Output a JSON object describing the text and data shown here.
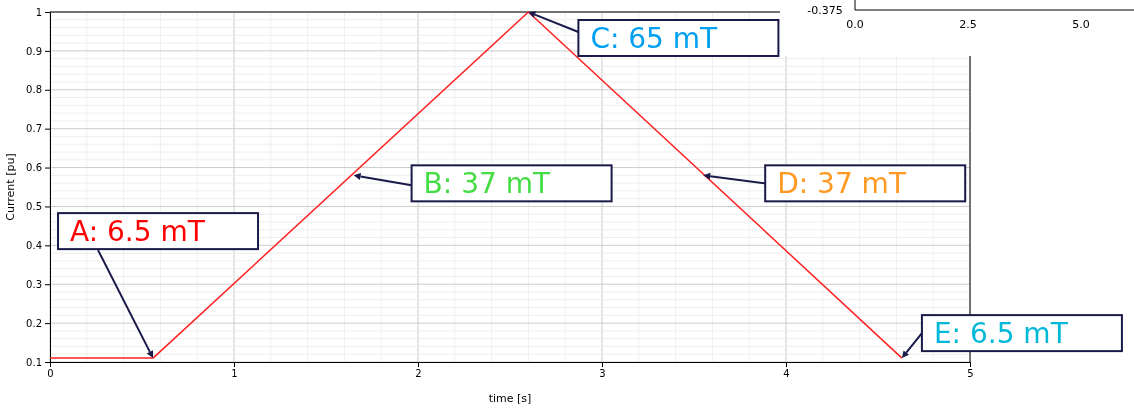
{
  "chart_data": [
    {
      "type": "line",
      "xlabel": "time [s]",
      "ylabel": "Current [pu]",
      "x": [
        0,
        0.56,
        2.6,
        4.63
      ],
      "series": [
        {
          "color": "#ff2020",
          "values": [
            0.11,
            0.11,
            1.0,
            0.11
          ]
        }
      ],
      "xlim": [
        0,
        5
      ],
      "xticks": [
        0,
        1,
        2,
        3,
        4,
        5
      ],
      "ylim": [
        0.1,
        1.0
      ],
      "yticks": [
        0.1,
        0.2,
        0.3,
        0.4,
        0.5,
        0.6,
        0.7,
        0.8,
        0.9,
        1.0
      ],
      "grid": true,
      "marker": "none",
      "line_style": "solid",
      "annotations": [
        {
          "text": "A: 6.5 mT",
          "x": 0.56,
          "y": 0.11
        },
        {
          "text": "B: 37 mT",
          "x": 1.65,
          "y": 0.58
        },
        {
          "text": "C: 65 mT",
          "x": 2.6,
          "y": 1.0
        },
        {
          "text": "D: 37 mT",
          "x": 3.55,
          "y": 0.58
        },
        {
          "text": "E: 6.5 mT",
          "x": 4.63,
          "y": 0.11
        }
      ]
    },
    {
      "type": "other",
      "annotations": [
        "-0.375",
        "0.0",
        "2.5",
        "5.0"
      ]
    }
  ]
}
